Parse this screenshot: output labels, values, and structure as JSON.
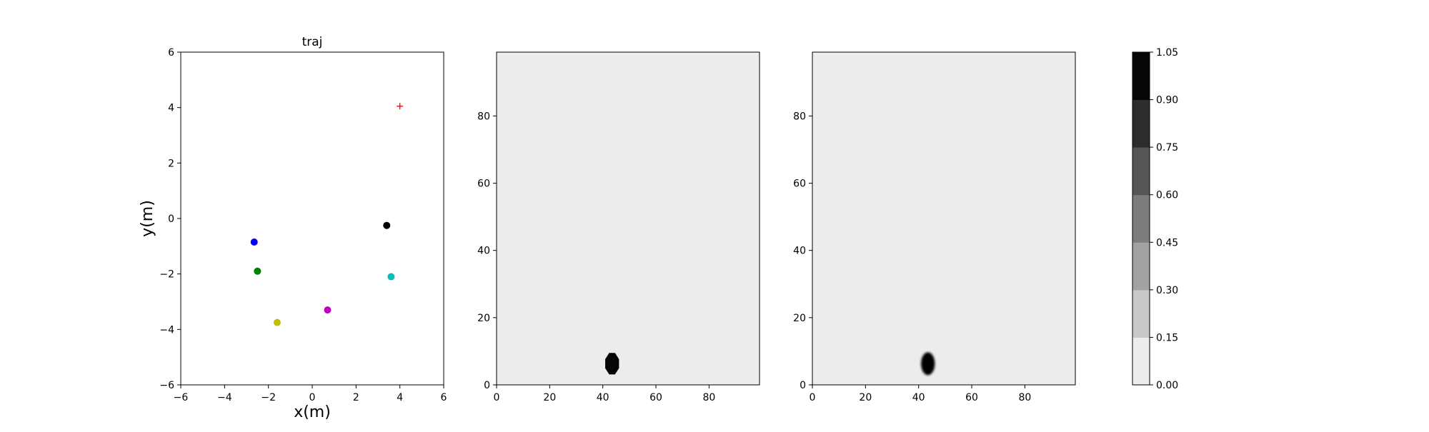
{
  "chart_data": [
    {
      "type": "scatter",
      "title": "traj",
      "xlabel": "x(m)",
      "ylabel": "y(m)",
      "xlim": [
        -6,
        6
      ],
      "ylim": [
        -6,
        6
      ],
      "xticks": [
        -6,
        -4,
        -2,
        0,
        2,
        4,
        6
      ],
      "yticks": [
        -6,
        -4,
        -2,
        0,
        2,
        4,
        6
      ],
      "grid": false,
      "points": [
        {
          "x": 3.4,
          "y": -0.25,
          "color": "#000000",
          "marker": "dot"
        },
        {
          "x": -2.65,
          "y": -0.85,
          "color": "#0000ff",
          "marker": "dot"
        },
        {
          "x": -2.5,
          "y": -1.9,
          "color": "#008000",
          "marker": "dot"
        },
        {
          "x": 3.6,
          "y": -2.1,
          "color": "#00bfbf",
          "marker": "dot"
        },
        {
          "x": 0.7,
          "y": -3.3,
          "color": "#bf00bf",
          "marker": "dot"
        },
        {
          "x": -1.6,
          "y": -3.75,
          "color": "#bfbf00",
          "marker": "dot"
        },
        {
          "x": 4.0,
          "y": 4.05,
          "color": "#ff0000",
          "marker": "plus"
        }
      ]
    },
    {
      "type": "heatmap",
      "title": "",
      "xlim": [
        0,
        99
      ],
      "ylim": [
        0,
        99
      ],
      "xticks": [
        0,
        20,
        40,
        60,
        80
      ],
      "yticks": [
        0,
        20,
        40,
        60,
        80
      ],
      "background_value": 0.0,
      "blob": {
        "cx": 43.5,
        "cy": 6.3,
        "rx": 2.6,
        "ry": 3.2,
        "value": 1.0,
        "soft": false
      }
    },
    {
      "type": "heatmap",
      "title": "",
      "xlim": [
        0,
        99
      ],
      "ylim": [
        0,
        99
      ],
      "xticks": [
        0,
        20,
        40,
        60,
        80
      ],
      "yticks": [
        0,
        20,
        40,
        60,
        80
      ],
      "background_value": 0.0,
      "blob": {
        "cx": 43.5,
        "cy": 6.3,
        "rx": 2.6,
        "ry": 3.4,
        "value": 1.0,
        "soft": true
      }
    }
  ],
  "colorbar": {
    "levels": [
      0.0,
      0.15,
      0.3,
      0.45,
      0.6,
      0.75,
      0.9,
      1.05
    ],
    "tick_labels": [
      "0.00",
      "0.15",
      "0.30",
      "0.45",
      "0.60",
      "0.75",
      "0.90",
      "1.05"
    ],
    "colors": [
      "#ececec",
      "#c8c8c8",
      "#a2a2a2",
      "#7c7c7c",
      "#555555",
      "#2d2d2d",
      "#060606"
    ]
  }
}
